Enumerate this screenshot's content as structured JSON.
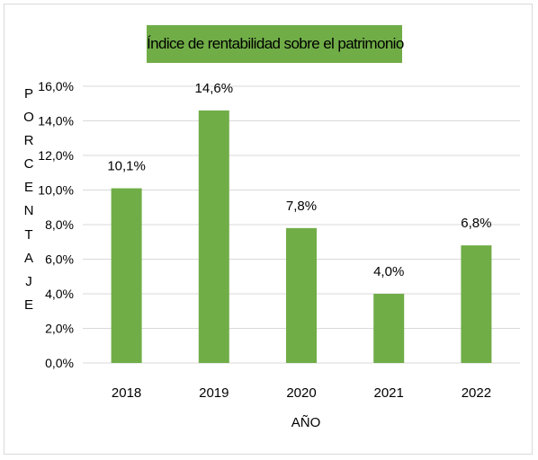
{
  "chart_data": {
    "type": "bar",
    "title": "Índice de rentabilidad sobre el patrimonio",
    "xlabel": "AÑO",
    "ylabel": "PORCENTAJE",
    "categories": [
      "2018",
      "2019",
      "2020",
      "2021",
      "2022"
    ],
    "values": [
      10.1,
      14.6,
      7.8,
      4.0,
      6.8
    ],
    "data_labels": [
      "10,1%",
      "14,6%",
      "7,8%",
      "4,0%",
      "6,8%"
    ],
    "ylim": [
      0,
      16
    ],
    "yticks": [
      0,
      2,
      4,
      6,
      8,
      10,
      12,
      14,
      16
    ],
    "ytick_labels": [
      "0,0%",
      "2,0%",
      "4,0%",
      "6,0%",
      "8,0%",
      "10,0%",
      "12,0%",
      "14,0%",
      "16,0%"
    ],
    "grid": true,
    "legend": "none",
    "bar_color": "#70ad47",
    "title_background": "#70ad47",
    "gridline_color": "#d9d9d9"
  }
}
